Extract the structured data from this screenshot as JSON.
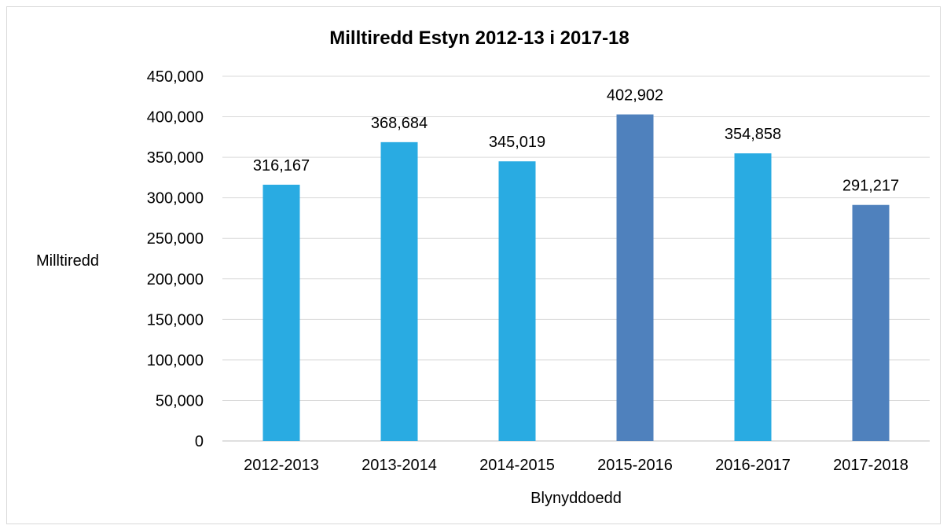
{
  "chart_data": {
    "type": "bar",
    "title": "Milltiredd Estyn 2012-13 i 2017-18",
    "xlabel": "Blynyddoedd",
    "ylabel": "Milltiredd",
    "categories": [
      "2012-2013",
      "2013-2014",
      "2014-2015",
      "2015-2016",
      "2016-2017",
      "2017-2018"
    ],
    "values": [
      316167,
      368684,
      345019,
      402902,
      354858,
      291217
    ],
    "data_labels": [
      "316,167",
      "368,684",
      "345,019",
      "402,902",
      "354,858",
      "291,217"
    ],
    "bar_colors": [
      "#29abe2",
      "#29abe2",
      "#29abe2",
      "#4f81bd",
      "#29abe2",
      "#4f81bd"
    ],
    "ylim": [
      0,
      450000
    ],
    "yticks": [
      0,
      50000,
      100000,
      150000,
      200000,
      250000,
      300000,
      350000,
      400000,
      450000
    ],
    "ytick_labels": [
      "0",
      "50,000",
      "100,000",
      "150,000",
      "200,000",
      "250,000",
      "300,000",
      "350,000",
      "400,000",
      "450,000"
    ],
    "grid": true,
    "legend": "none"
  }
}
